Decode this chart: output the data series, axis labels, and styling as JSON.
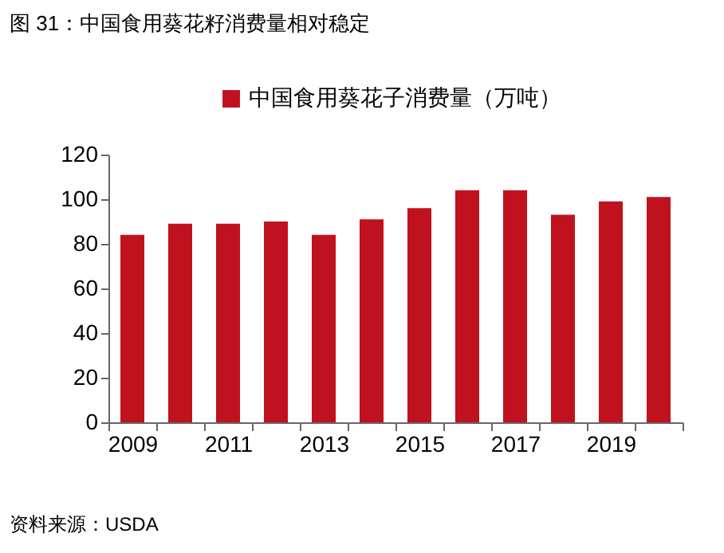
{
  "chart_data": {
    "type": "bar",
    "title": "图 31：中国食用葵花籽消费量相对稳定",
    "categories": [
      "2009",
      null,
      "2011",
      null,
      "2013",
      null,
      "2015",
      null,
      "2017",
      null,
      "2019",
      null
    ],
    "series": [
      {
        "name": "中国食用葵花子消费量（万吨）",
        "color": "#c0111f",
        "values": [
          84,
          89,
          89,
          90,
          84,
          91,
          96,
          104,
          104,
          93,
          99,
          101
        ]
      }
    ],
    "ylim": [
      0,
      120
    ],
    "yticks": [
      0,
      20,
      40,
      60,
      80,
      100,
      120
    ],
    "grid": false,
    "legend": "top",
    "annotations": [
      "资料来源：USDA"
    ]
  }
}
